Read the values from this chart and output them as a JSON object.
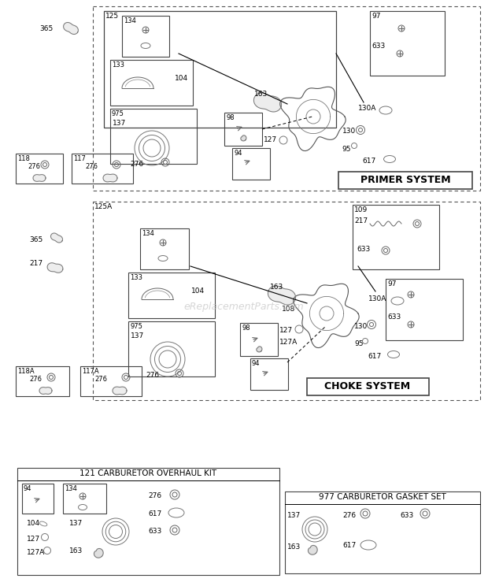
{
  "bg_color": "#ffffff",
  "watermark": "eReplacementParts.com",
  "section1_label": "PRIMER SYSTEM",
  "section2_label": "CHOKE SYSTEM",
  "kit_label": "121 CARBURETOR OVERHAUL KIT",
  "gasket_label": "977 CARBURETOR GASKET SET"
}
